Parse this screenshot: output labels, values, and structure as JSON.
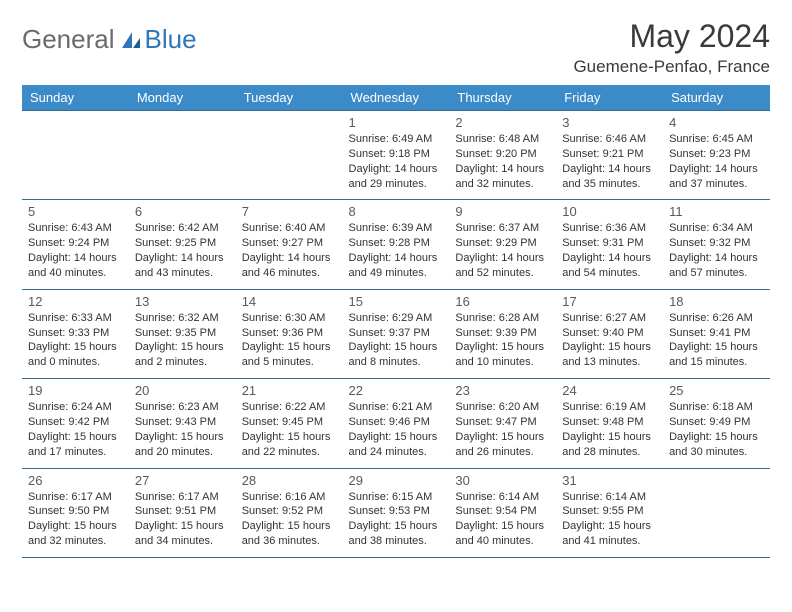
{
  "header": {
    "logo_gray": "General",
    "logo_blue": "Blue",
    "month_title": "May 2024",
    "location": "Guemene-Penfao, France"
  },
  "theme": {
    "header_bg": "#3b8bc9",
    "header_fg": "#ffffff",
    "row_border": "#3b6a8f",
    "logo_gray": "#6b6b6b",
    "logo_blue": "#2f77b6",
    "text_color": "#333333",
    "daynum_color": "#5a5a5a"
  },
  "day_labels": [
    "Sunday",
    "Monday",
    "Tuesday",
    "Wednesday",
    "Thursday",
    "Friday",
    "Saturday"
  ],
  "weeks": [
    [
      {
        "day": "",
        "sunrise": "",
        "sunset": "",
        "daylight": ""
      },
      {
        "day": "",
        "sunrise": "",
        "sunset": "",
        "daylight": ""
      },
      {
        "day": "",
        "sunrise": "",
        "sunset": "",
        "daylight": ""
      },
      {
        "day": "1",
        "sunrise": "Sunrise: 6:49 AM",
        "sunset": "Sunset: 9:18 PM",
        "daylight": "Daylight: 14 hours and 29 minutes."
      },
      {
        "day": "2",
        "sunrise": "Sunrise: 6:48 AM",
        "sunset": "Sunset: 9:20 PM",
        "daylight": "Daylight: 14 hours and 32 minutes."
      },
      {
        "day": "3",
        "sunrise": "Sunrise: 6:46 AM",
        "sunset": "Sunset: 9:21 PM",
        "daylight": "Daylight: 14 hours and 35 minutes."
      },
      {
        "day": "4",
        "sunrise": "Sunrise: 6:45 AM",
        "sunset": "Sunset: 9:23 PM",
        "daylight": "Daylight: 14 hours and 37 minutes."
      }
    ],
    [
      {
        "day": "5",
        "sunrise": "Sunrise: 6:43 AM",
        "sunset": "Sunset: 9:24 PM",
        "daylight": "Daylight: 14 hours and 40 minutes."
      },
      {
        "day": "6",
        "sunrise": "Sunrise: 6:42 AM",
        "sunset": "Sunset: 9:25 PM",
        "daylight": "Daylight: 14 hours and 43 minutes."
      },
      {
        "day": "7",
        "sunrise": "Sunrise: 6:40 AM",
        "sunset": "Sunset: 9:27 PM",
        "daylight": "Daylight: 14 hours and 46 minutes."
      },
      {
        "day": "8",
        "sunrise": "Sunrise: 6:39 AM",
        "sunset": "Sunset: 9:28 PM",
        "daylight": "Daylight: 14 hours and 49 minutes."
      },
      {
        "day": "9",
        "sunrise": "Sunrise: 6:37 AM",
        "sunset": "Sunset: 9:29 PM",
        "daylight": "Daylight: 14 hours and 52 minutes."
      },
      {
        "day": "10",
        "sunrise": "Sunrise: 6:36 AM",
        "sunset": "Sunset: 9:31 PM",
        "daylight": "Daylight: 14 hours and 54 minutes."
      },
      {
        "day": "11",
        "sunrise": "Sunrise: 6:34 AM",
        "sunset": "Sunset: 9:32 PM",
        "daylight": "Daylight: 14 hours and 57 minutes."
      }
    ],
    [
      {
        "day": "12",
        "sunrise": "Sunrise: 6:33 AM",
        "sunset": "Sunset: 9:33 PM",
        "daylight": "Daylight: 15 hours and 0 minutes."
      },
      {
        "day": "13",
        "sunrise": "Sunrise: 6:32 AM",
        "sunset": "Sunset: 9:35 PM",
        "daylight": "Daylight: 15 hours and 2 minutes."
      },
      {
        "day": "14",
        "sunrise": "Sunrise: 6:30 AM",
        "sunset": "Sunset: 9:36 PM",
        "daylight": "Daylight: 15 hours and 5 minutes."
      },
      {
        "day": "15",
        "sunrise": "Sunrise: 6:29 AM",
        "sunset": "Sunset: 9:37 PM",
        "daylight": "Daylight: 15 hours and 8 minutes."
      },
      {
        "day": "16",
        "sunrise": "Sunrise: 6:28 AM",
        "sunset": "Sunset: 9:39 PM",
        "daylight": "Daylight: 15 hours and 10 minutes."
      },
      {
        "day": "17",
        "sunrise": "Sunrise: 6:27 AM",
        "sunset": "Sunset: 9:40 PM",
        "daylight": "Daylight: 15 hours and 13 minutes."
      },
      {
        "day": "18",
        "sunrise": "Sunrise: 6:26 AM",
        "sunset": "Sunset: 9:41 PM",
        "daylight": "Daylight: 15 hours and 15 minutes."
      }
    ],
    [
      {
        "day": "19",
        "sunrise": "Sunrise: 6:24 AM",
        "sunset": "Sunset: 9:42 PM",
        "daylight": "Daylight: 15 hours and 17 minutes."
      },
      {
        "day": "20",
        "sunrise": "Sunrise: 6:23 AM",
        "sunset": "Sunset: 9:43 PM",
        "daylight": "Daylight: 15 hours and 20 minutes."
      },
      {
        "day": "21",
        "sunrise": "Sunrise: 6:22 AM",
        "sunset": "Sunset: 9:45 PM",
        "daylight": "Daylight: 15 hours and 22 minutes."
      },
      {
        "day": "22",
        "sunrise": "Sunrise: 6:21 AM",
        "sunset": "Sunset: 9:46 PM",
        "daylight": "Daylight: 15 hours and 24 minutes."
      },
      {
        "day": "23",
        "sunrise": "Sunrise: 6:20 AM",
        "sunset": "Sunset: 9:47 PM",
        "daylight": "Daylight: 15 hours and 26 minutes."
      },
      {
        "day": "24",
        "sunrise": "Sunrise: 6:19 AM",
        "sunset": "Sunset: 9:48 PM",
        "daylight": "Daylight: 15 hours and 28 minutes."
      },
      {
        "day": "25",
        "sunrise": "Sunrise: 6:18 AM",
        "sunset": "Sunset: 9:49 PM",
        "daylight": "Daylight: 15 hours and 30 minutes."
      }
    ],
    [
      {
        "day": "26",
        "sunrise": "Sunrise: 6:17 AM",
        "sunset": "Sunset: 9:50 PM",
        "daylight": "Daylight: 15 hours and 32 minutes."
      },
      {
        "day": "27",
        "sunrise": "Sunrise: 6:17 AM",
        "sunset": "Sunset: 9:51 PM",
        "daylight": "Daylight: 15 hours and 34 minutes."
      },
      {
        "day": "28",
        "sunrise": "Sunrise: 6:16 AM",
        "sunset": "Sunset: 9:52 PM",
        "daylight": "Daylight: 15 hours and 36 minutes."
      },
      {
        "day": "29",
        "sunrise": "Sunrise: 6:15 AM",
        "sunset": "Sunset: 9:53 PM",
        "daylight": "Daylight: 15 hours and 38 minutes."
      },
      {
        "day": "30",
        "sunrise": "Sunrise: 6:14 AM",
        "sunset": "Sunset: 9:54 PM",
        "daylight": "Daylight: 15 hours and 40 minutes."
      },
      {
        "day": "31",
        "sunrise": "Sunrise: 6:14 AM",
        "sunset": "Sunset: 9:55 PM",
        "daylight": "Daylight: 15 hours and 41 minutes."
      },
      {
        "day": "",
        "sunrise": "",
        "sunset": "",
        "daylight": ""
      }
    ]
  ]
}
